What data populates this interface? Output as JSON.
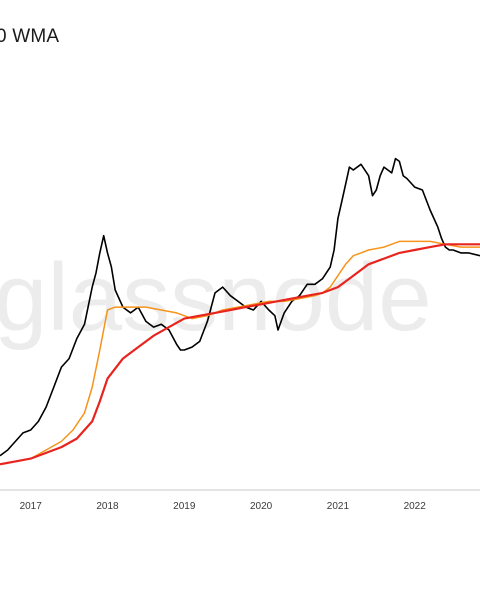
{
  "chart_data": {
    "type": "line",
    "title": "0 WMA",
    "watermark": "glassnode",
    "xlabel": "",
    "ylabel": "",
    "x_ticks": [
      "2017",
      "2018",
      "2019",
      "2020",
      "2021",
      "2022"
    ],
    "xlim": [
      2016.6,
      2022.85
    ],
    "ylim": [
      0,
      1
    ],
    "y_scale": "log (unlabeled, values normalized 0–1)",
    "grid": false,
    "legend": "none",
    "series": [
      {
        "color": "#000000",
        "x": [
          2016.6,
          2016.7,
          2016.8,
          2016.9,
          2017.0,
          2017.1,
          2017.2,
          2017.3,
          2017.4,
          2017.5,
          2017.6,
          2017.7,
          2017.8,
          2017.85,
          2017.9,
          2017.95,
          2018.0,
          2018.05,
          2018.1,
          2018.2,
          2018.3,
          2018.4,
          2018.5,
          2018.6,
          2018.7,
          2018.8,
          2018.9,
          2018.95,
          2019.0,
          2019.1,
          2019.2,
          2019.3,
          2019.4,
          2019.5,
          2019.6,
          2019.7,
          2019.8,
          2019.9,
          2020.0,
          2020.1,
          2020.18,
          2020.22,
          2020.3,
          2020.4,
          2020.5,
          2020.6,
          2020.7,
          2020.8,
          2020.9,
          2020.95,
          2021.0,
          2021.05,
          2021.1,
          2021.15,
          2021.2,
          2021.3,
          2021.4,
          2021.45,
          2021.5,
          2021.55,
          2021.6,
          2021.7,
          2021.75,
          2021.8,
          2021.85,
          2021.9,
          2022.0,
          2022.1,
          2022.2,
          2022.3,
          2022.35,
          2022.4,
          2022.45,
          2022.5,
          2022.6,
          2022.7,
          2022.85
        ],
        "values": [
          0.23,
          0.25,
          0.28,
          0.31,
          0.32,
          0.35,
          0.4,
          0.47,
          0.54,
          0.57,
          0.64,
          0.69,
          0.82,
          0.87,
          0.94,
          1.0,
          0.94,
          0.89,
          0.81,
          0.75,
          0.73,
          0.75,
          0.7,
          0.68,
          0.69,
          0.67,
          0.62,
          0.6,
          0.6,
          0.61,
          0.63,
          0.7,
          0.8,
          0.82,
          0.79,
          0.77,
          0.75,
          0.74,
          0.77,
          0.74,
          0.72,
          0.67,
          0.73,
          0.77,
          0.79,
          0.83,
          0.83,
          0.85,
          0.89,
          0.95,
          1.06,
          1.12,
          1.18,
          1.24,
          1.23,
          1.25,
          1.21,
          1.14,
          1.16,
          1.21,
          1.24,
          1.22,
          1.27,
          1.26,
          1.21,
          1.2,
          1.17,
          1.16,
          1.09,
          1.03,
          0.99,
          0.96,
          0.95,
          0.95,
          0.94,
          0.94,
          0.93
        ]
      },
      {
        "color": "#f7931a",
        "x": [
          2016.6,
          2016.8,
          2017.0,
          2017.2,
          2017.4,
          2017.55,
          2017.7,
          2017.8,
          2017.9,
          2018.0,
          2018.1,
          2018.3,
          2018.5,
          2018.7,
          2018.9,
          2019.0,
          2019.1,
          2019.3,
          2019.5,
          2019.7,
          2019.9,
          2020.1,
          2020.3,
          2020.5,
          2020.7,
          2020.8,
          2020.9,
          2021.0,
          2021.1,
          2021.2,
          2021.3,
          2021.4,
          2021.6,
          2021.8,
          2022.0,
          2022.2,
          2022.4,
          2022.6,
          2022.85
        ],
        "values": [
          0.2,
          0.21,
          0.22,
          0.25,
          0.28,
          0.32,
          0.38,
          0.47,
          0.6,
          0.74,
          0.75,
          0.75,
          0.75,
          0.74,
          0.73,
          0.72,
          0.71,
          0.72,
          0.74,
          0.75,
          0.76,
          0.77,
          0.77,
          0.78,
          0.79,
          0.8,
          0.82,
          0.86,
          0.9,
          0.93,
          0.94,
          0.95,
          0.96,
          0.98,
          0.98,
          0.98,
          0.97,
          0.96,
          0.96
        ]
      },
      {
        "color": "#e8241f",
        "x": [
          2016.6,
          2016.8,
          2017.0,
          2017.2,
          2017.4,
          2017.6,
          2017.8,
          2017.9,
          2018.0,
          2018.2,
          2018.4,
          2018.6,
          2018.8,
          2019.0,
          2019.2,
          2019.4,
          2019.6,
          2019.8,
          2020.0,
          2020.2,
          2020.4,
          2020.6,
          2020.8,
          2021.0,
          2021.2,
          2021.4,
          2021.6,
          2021.8,
          2022.0,
          2022.2,
          2022.4,
          2022.6,
          2022.85
        ],
        "values": [
          0.2,
          0.21,
          0.22,
          0.24,
          0.26,
          0.29,
          0.35,
          0.42,
          0.5,
          0.57,
          0.61,
          0.65,
          0.68,
          0.71,
          0.72,
          0.73,
          0.74,
          0.75,
          0.76,
          0.77,
          0.78,
          0.79,
          0.8,
          0.82,
          0.86,
          0.9,
          0.92,
          0.94,
          0.95,
          0.96,
          0.97,
          0.97,
          0.97
        ]
      }
    ]
  }
}
